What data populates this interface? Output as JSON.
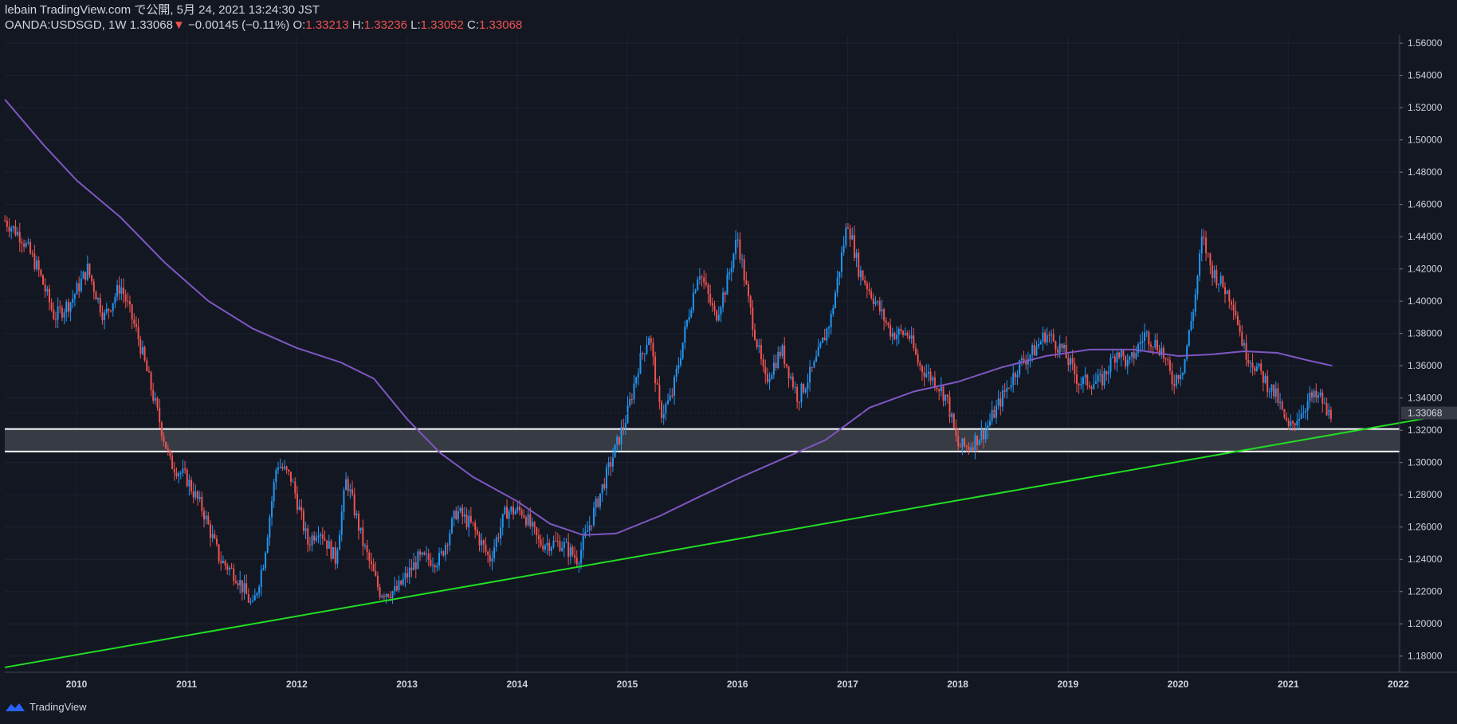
{
  "header": {
    "publisher": "lebain TradingView.com で公開, 5月 24, 2021 13:24:30 JST",
    "symbol": "OANDA:USDSGD, 1W",
    "last": "1.33068",
    "change": "−0.00145 (−0.11%)",
    "o_label": "O:",
    "o_value": "1.33213",
    "h_label": "H:",
    "h_value": "1.33236",
    "l_label": "L:",
    "l_value": "1.33052",
    "c_label": "C:",
    "c_value": "1.33068"
  },
  "footer": {
    "brand": "TradingView"
  },
  "colors": {
    "background": "#131722",
    "up": "#2196f3",
    "down": "#ef5350",
    "ma": "#7e57c2",
    "trendline": "#22dd22",
    "zone": "#3c3f47",
    "zone_border": "#ffffff",
    "grid": "#1e2230"
  },
  "chart_data": {
    "type": "candlestick",
    "symbol": "OANDA:USDSGD",
    "timeframe": "1W",
    "ylim": [
      1.17,
      1.565
    ],
    "y_ticks": [
      "1.18000",
      "1.20000",
      "1.22000",
      "1.24000",
      "1.26000",
      "1.28000",
      "1.30000",
      "1.32000",
      "1.34000",
      "1.36000",
      "1.38000",
      "1.40000",
      "1.42000",
      "1.44000",
      "1.46000",
      "1.48000",
      "1.50000",
      "1.52000",
      "1.54000",
      "1.56000"
    ],
    "x_ticks": [
      "2010",
      "2011",
      "2012",
      "2013",
      "2014",
      "2015",
      "2016",
      "2017",
      "2018",
      "2019",
      "2020",
      "2021",
      "2022"
    ],
    "x_range": [
      2009.35,
      2022.0
    ],
    "last_price_label": "1.33068",
    "price_path": [
      [
        2009.35,
        1.45
      ],
      [
        2009.5,
        1.44
      ],
      [
        2009.65,
        1.42
      ],
      [
        2009.8,
        1.39
      ],
      [
        2009.95,
        1.4
      ],
      [
        2010.1,
        1.42
      ],
      [
        2010.25,
        1.39
      ],
      [
        2010.4,
        1.41
      ],
      [
        2010.55,
        1.38
      ],
      [
        2010.7,
        1.34
      ],
      [
        2010.85,
        1.3
      ],
      [
        2011.0,
        1.29
      ],
      [
        2011.15,
        1.27
      ],
      [
        2011.3,
        1.24
      ],
      [
        2011.45,
        1.23
      ],
      [
        2011.6,
        1.21
      ],
      [
        2011.7,
        1.24
      ],
      [
        2011.82,
        1.3
      ],
      [
        2011.95,
        1.29
      ],
      [
        2012.1,
        1.25
      ],
      [
        2012.2,
        1.26
      ],
      [
        2012.35,
        1.24
      ],
      [
        2012.45,
        1.29
      ],
      [
        2012.6,
        1.25
      ],
      [
        2012.75,
        1.22
      ],
      [
        2012.9,
        1.22
      ],
      [
        2013.1,
        1.24
      ],
      [
        2013.3,
        1.24
      ],
      [
        2013.45,
        1.27
      ],
      [
        2013.6,
        1.26
      ],
      [
        2013.75,
        1.24
      ],
      [
        2013.9,
        1.27
      ],
      [
        2014.05,
        1.27
      ],
      [
        2014.2,
        1.25
      ],
      [
        2014.4,
        1.25
      ],
      [
        2014.55,
        1.24
      ],
      [
        2014.7,
        1.27
      ],
      [
        2014.85,
        1.3
      ],
      [
        2015.0,
        1.33
      ],
      [
        2015.1,
        1.36
      ],
      [
        2015.2,
        1.38
      ],
      [
        2015.3,
        1.33
      ],
      [
        2015.4,
        1.34
      ],
      [
        2015.55,
        1.39
      ],
      [
        2015.65,
        1.42
      ],
      [
        2015.8,
        1.39
      ],
      [
        2015.9,
        1.41
      ],
      [
        2016.0,
        1.44
      ],
      [
        2016.1,
        1.4
      ],
      [
        2016.25,
        1.35
      ],
      [
        2016.4,
        1.37
      ],
      [
        2016.55,
        1.34
      ],
      [
        2016.7,
        1.36
      ],
      [
        2016.85,
        1.39
      ],
      [
        2016.95,
        1.43
      ],
      [
        2017.0,
        1.45
      ],
      [
        2017.1,
        1.42
      ],
      [
        2017.25,
        1.4
      ],
      [
        2017.4,
        1.38
      ],
      [
        2017.55,
        1.38
      ],
      [
        2017.65,
        1.36
      ],
      [
        2017.8,
        1.35
      ],
      [
        2017.9,
        1.34
      ],
      [
        2018.0,
        1.31
      ],
      [
        2018.1,
        1.31
      ],
      [
        2018.25,
        1.32
      ],
      [
        2018.4,
        1.34
      ],
      [
        2018.55,
        1.36
      ],
      [
        2018.7,
        1.37
      ],
      [
        2018.8,
        1.38
      ],
      [
        2018.95,
        1.37
      ],
      [
        2019.1,
        1.35
      ],
      [
        2019.3,
        1.35
      ],
      [
        2019.45,
        1.37
      ],
      [
        2019.55,
        1.36
      ],
      [
        2019.7,
        1.38
      ],
      [
        2019.85,
        1.37
      ],
      [
        2019.95,
        1.35
      ],
      [
        2020.05,
        1.36
      ],
      [
        2020.15,
        1.4
      ],
      [
        2020.22,
        1.44
      ],
      [
        2020.3,
        1.42
      ],
      [
        2020.4,
        1.41
      ],
      [
        2020.5,
        1.4
      ],
      [
        2020.6,
        1.37
      ],
      [
        2020.7,
        1.36
      ],
      [
        2020.8,
        1.35
      ],
      [
        2020.9,
        1.34
      ],
      [
        2021.0,
        1.32
      ],
      [
        2021.1,
        1.33
      ],
      [
        2021.2,
        1.34
      ],
      [
        2021.3,
        1.34
      ],
      [
        2021.35,
        1.33
      ],
      [
        2021.4,
        1.3307
      ]
    ],
    "moving_average": [
      [
        2009.35,
        1.525
      ],
      [
        2009.7,
        1.497
      ],
      [
        2010.0,
        1.475
      ],
      [
        2010.4,
        1.452
      ],
      [
        2010.8,
        1.424
      ],
      [
        2011.2,
        1.4
      ],
      [
        2011.6,
        1.383
      ],
      [
        2012.0,
        1.371
      ],
      [
        2012.4,
        1.362
      ],
      [
        2012.7,
        1.352
      ],
      [
        2013.0,
        1.327
      ],
      [
        2013.3,
        1.306
      ],
      [
        2013.6,
        1.291
      ],
      [
        2014.0,
        1.276
      ],
      [
        2014.3,
        1.262
      ],
      [
        2014.6,
        1.255
      ],
      [
        2014.9,
        1.256
      ],
      [
        2015.3,
        1.267
      ],
      [
        2015.6,
        1.277
      ],
      [
        2016.0,
        1.29
      ],
      [
        2016.4,
        1.302
      ],
      [
        2016.8,
        1.314
      ],
      [
        2017.2,
        1.334
      ],
      [
        2017.6,
        1.344
      ],
      [
        2018.0,
        1.35
      ],
      [
        2018.4,
        1.359
      ],
      [
        2018.8,
        1.366
      ],
      [
        2019.2,
        1.37
      ],
      [
        2019.6,
        1.37
      ],
      [
        2020.0,
        1.366
      ],
      [
        2020.3,
        1.367
      ],
      [
        2020.6,
        1.369
      ],
      [
        2020.9,
        1.368
      ],
      [
        2021.2,
        1.363
      ],
      [
        2021.4,
        1.36
      ]
    ],
    "trendline": {
      "start": [
        2009.35,
        1.173
      ],
      "end": [
        2022.0,
        1.328
      ]
    },
    "zone": {
      "top": 1.3208,
      "bottom": 1.3068
    }
  }
}
